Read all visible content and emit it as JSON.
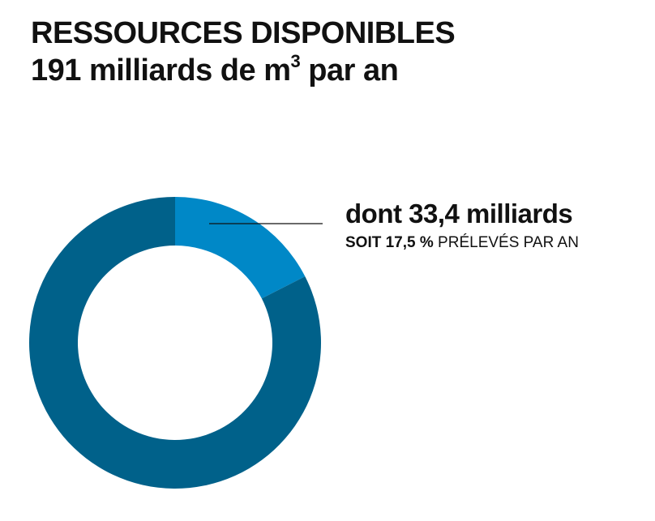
{
  "chart_data": {
    "type": "pie",
    "donut": true,
    "title": {
      "line1": "RESSOURCES DISPONIBLES",
      "line2_prefix": "191 milliards de m",
      "line2_superscript": "3",
      "line2_suffix": " par an"
    },
    "total": 191,
    "slices": [
      {
        "value": 33.4,
        "share_percent": 17.5,
        "color": "#0088C7"
      },
      {
        "value": 157.6,
        "share_percent": 82.5,
        "color": "#00618A"
      }
    ],
    "annotation": {
      "main": "dont 33,4 milliards",
      "sub_bold": "SOIT 17,5 %",
      "sub_regular": " PRÉLEVÉS PAR AN"
    },
    "legend": "none"
  }
}
